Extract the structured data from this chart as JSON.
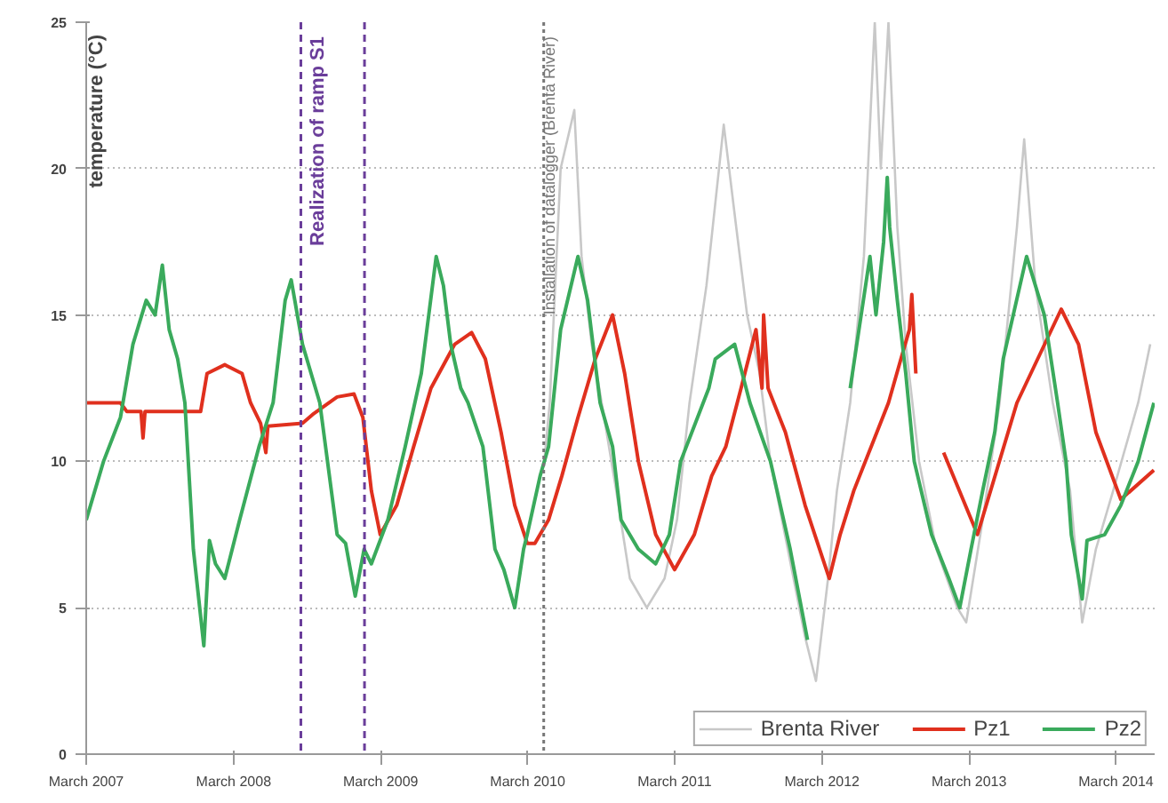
{
  "chart_data": {
    "type": "line",
    "ylabel": "temperature (°C)",
    "xlim": [
      "2007-03-01",
      "2014-06-05"
    ],
    "ylim": [
      0,
      25
    ],
    "yticks": [
      0,
      5,
      10,
      15,
      20,
      25
    ],
    "xticks": [
      {
        "value": "2007-03-01",
        "label": "March 2007"
      },
      {
        "value": "2008-03-01",
        "label": "March 2008"
      },
      {
        "value": "2009-03-01",
        "label": "March 2009"
      },
      {
        "value": "2010-03-01",
        "label": "March 2010"
      },
      {
        "value": "2011-03-01",
        "label": "March 2011"
      },
      {
        "value": "2012-03-01",
        "label": "March 2012"
      },
      {
        "value": "2013-03-01",
        "label": "March 2013"
      },
      {
        "value": "2014-03-01",
        "label": "March 2014"
      }
    ],
    "grid": "y",
    "legend": "bottom right",
    "line_style": "solid",
    "ref_lines": [
      {
        "axis": "x",
        "value": "2008-08-15",
        "label": "Realization of ramp S1",
        "color": "#6a3d9a",
        "line_style": "dashed"
      },
      {
        "axis": "x",
        "value": "2009-01-20",
        "label": null,
        "color": "#6a3d9a",
        "line_style": "dashed"
      },
      {
        "axis": "x",
        "value": "2010-04-10",
        "label": "Installation of datalogger (Brenta River)",
        "color": "#777777",
        "line_style": "dotted"
      }
    ],
    "series": [
      {
        "name": "Brenta River",
        "color": "#c8c8c8",
        "x": [
          "2010-04-10",
          "2010-04-25",
          "2010-05-22",
          "2010-06-25",
          "2010-07-13",
          "2010-08-07",
          "2010-09-01",
          "2010-10-07",
          "2010-11-10",
          "2010-12-22",
          "2011-02-04",
          "2011-03-07",
          "2011-04-07",
          "2011-05-19",
          "2011-07-01",
          "2011-08-01",
          "2011-08-28",
          "2011-09-28",
          "2011-10-25",
          "2011-12-07",
          "2012-01-19",
          "2012-02-15",
          "2012-03-16",
          "2012-04-07",
          "2012-05-10",
          "2012-06-13",
          "2012-07-10",
          "2012-07-25",
          "2012-08-13",
          "2012-09-04",
          "2012-09-25",
          "2012-10-28",
          "2012-12-10",
          "2013-01-31",
          "2013-02-22",
          "2013-04-04",
          "2013-05-16",
          "2013-06-28",
          "2013-07-16",
          "2013-08-13",
          "2013-09-25",
          "2013-11-07",
          "2013-12-07",
          "2014-01-10",
          "2014-02-22",
          "2014-04-25",
          "2014-05-25"
        ],
        "values": [
          9.8,
          12,
          20,
          22,
          17,
          14,
          12,
          9,
          6,
          5,
          6,
          8,
          12,
          16,
          21.5,
          18,
          15,
          13,
          10,
          7,
          4,
          2.5,
          6,
          9,
          12,
          17,
          25,
          20,
          25,
          18,
          14,
          10,
          7,
          5,
          4.5,
          8,
          12,
          18,
          21,
          16,
          12,
          9,
          4.5,
          7,
          9,
          12,
          14
        ]
      },
      {
        "name": "Pz1",
        "color": "#e0301e",
        "x": [
          "2007-03-01",
          "2007-05-25",
          "2007-06-10",
          "2007-07-15",
          "2007-07-20",
          "2007-07-25",
          "2007-11-01",
          "2007-12-10",
          "2007-12-26",
          "2008-02-08",
          "2008-03-22",
          "2008-04-12",
          "2008-05-07",
          "2008-05-20",
          "2008-05-25",
          "2008-08-19",
          "2008-09-13",
          "2008-11-13",
          "2008-12-25",
          "2009-01-16",
          "2009-02-06",
          "2009-02-28",
          "2009-04-10",
          "2009-05-22",
          "2009-07-04",
          "2009-09-01",
          "2009-10-13",
          "2009-11-16",
          "2009-12-25",
          "2010-01-28",
          "2010-02-28",
          "2010-03-19",
          "2010-04-22",
          "2010-05-25",
          "2010-07-04",
          "2010-08-16",
          "2010-09-28",
          "2010-10-28",
          "2010-12-01",
          "2011-01-13",
          "2011-03-01",
          "2011-04-19",
          "2011-06-01",
          "2011-07-06",
          "2011-08-13",
          "2011-09-19",
          "2011-10-04",
          "2011-10-08",
          "2011-10-19",
          "2011-12-01",
          "2012-01-19",
          "2012-03-19",
          "2012-04-15",
          "2012-05-19",
          "2012-07-01",
          "2012-08-13",
          "2012-09-13",
          "2012-10-04",
          "2012-10-10",
          "2012-10-20",
          "2012-12-01",
          "2012-12-28",
          "2013-03-22",
          "2013-06-28",
          "2013-10-16",
          "2013-11-28",
          "2014-01-10",
          "2014-03-13",
          "2014-06-03"
        ],
        "values": [
          12,
          12,
          11.7,
          11.7,
          10.8,
          11.7,
          11.7,
          11.7,
          13,
          13.3,
          13,
          12,
          11.3,
          10.3,
          11.2,
          11.3,
          11.6,
          12.2,
          12.3,
          11.5,
          9,
          7.5,
          8.5,
          10.5,
          12.5,
          14,
          14.4,
          13.5,
          11,
          8.5,
          7.2,
          7.2,
          8,
          9.5,
          11.5,
          13.5,
          15,
          13,
          10,
          7.5,
          6.3,
          7.5,
          9.5,
          10.5,
          12.5,
          14.5,
          12.5,
          15,
          12.5,
          11,
          8.5,
          6,
          7.5,
          9,
          10.5,
          12,
          13.5,
          14.5,
          15.7,
          13,
          null,
          10.3,
          7.5,
          12,
          15.2,
          14,
          11,
          8.7,
          9.7
        ]
      },
      {
        "name": "Pz2",
        "color": "#3aaa5c",
        "x": [
          "2007-03-01",
          "2007-04-13",
          "2007-05-25",
          "2007-06-25",
          "2007-07-28",
          "2007-08-19",
          "2007-09-06",
          "2007-09-23",
          "2007-10-14",
          "2007-11-01",
          "2007-11-22",
          "2007-12-18",
          "2008-01-01",
          "2008-01-16",
          "2008-02-08",
          "2008-03-16",
          "2008-05-03",
          "2008-06-07",
          "2008-07-07",
          "2008-07-22",
          "2008-08-19",
          "2008-10-01",
          "2008-11-13",
          "2008-12-04",
          "2008-12-28",
          "2009-01-19",
          "2009-02-06",
          "2009-03-19",
          "2009-05-01",
          "2009-06-10",
          "2009-07-17",
          "2009-08-04",
          "2009-08-22",
          "2009-09-16",
          "2009-10-04",
          "2009-11-10",
          "2009-12-10",
          "2010-01-01",
          "2010-01-28",
          "2010-02-19",
          "2010-02-28",
          "2010-04-01",
          "2010-04-22",
          "2010-05-22",
          "2010-07-04",
          "2010-07-28",
          "2010-08-28",
          "2010-09-28",
          "2010-10-19",
          "2010-12-01",
          "2011-01-13",
          "2011-02-16",
          "2011-03-16",
          "2011-05-25",
          "2011-06-10",
          "2011-07-28",
          "2011-09-04",
          "2011-10-25",
          "2011-12-13",
          "2012-01-25",
          "2012-03-15",
          "2012-05-10",
          "2012-06-28",
          "2012-07-13",
          "2012-08-01",
          "2012-08-10",
          "2012-08-16",
          "2012-09-04",
          "2012-09-25",
          "2012-10-16",
          "2012-11-28",
          "2013-01-10",
          "2013-02-06",
          "2013-03-06",
          "2013-04-04",
          "2013-05-04",
          "2013-05-25",
          "2013-07-22",
          "2013-09-04",
          "2013-10-07",
          "2013-10-28",
          "2013-11-10",
          "2013-12-07",
          "2013-12-19",
          "2014-02-01",
          "2014-03-13",
          "2014-04-25",
          "2014-06-03"
        ],
        "values": [
          8,
          10,
          11.5,
          14,
          15.5,
          15,
          16.7,
          14.5,
          13.5,
          12,
          7,
          3.7,
          7.3,
          6.5,
          6,
          8,
          10.5,
          12,
          15.5,
          16.2,
          14,
          12,
          7.5,
          7.2,
          5.4,
          7,
          6.5,
          8,
          10.5,
          13,
          17,
          16,
          14,
          12.5,
          12,
          10.5,
          7,
          6.3,
          5,
          7,
          7.5,
          9.5,
          10.5,
          14.5,
          17,
          15.5,
          12,
          10.5,
          8,
          7,
          6.5,
          7.5,
          10,
          12.5,
          13.5,
          14,
          12,
          10,
          7,
          3.9,
          null,
          12.5,
          17,
          15,
          17.5,
          19.7,
          18,
          15.5,
          13,
          10,
          7.5,
          6,
          5,
          7,
          9,
          11,
          13.5,
          17,
          15,
          12,
          10,
          7.5,
          5.3,
          7.3,
          7.5,
          8.5,
          10,
          12
        ]
      }
    ]
  }
}
